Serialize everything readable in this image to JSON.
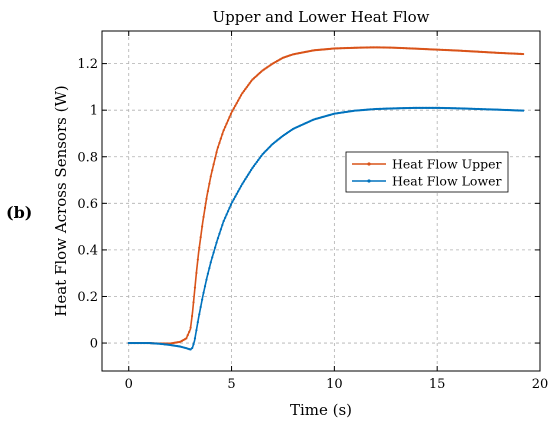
{
  "panel_label": "(b)",
  "chart_data": {
    "type": "line",
    "title": "Upper and Lower Heat Flow",
    "xlabel": "Time (s)",
    "ylabel": "Heat Flow Across Sensors (W)",
    "xlim": [
      -1.3,
      20
    ],
    "ylim": [
      -0.12,
      1.34
    ],
    "xticks": [
      0,
      5,
      10,
      15,
      20
    ],
    "xtick_labels": [
      "0",
      "5",
      "10",
      "15",
      "20"
    ],
    "yticks": [
      0,
      0.2,
      0.4,
      0.6,
      0.8,
      1.0,
      1.2
    ],
    "ytick_labels": [
      "0",
      "0.2",
      "0.4",
      "0.6",
      "0.8",
      "1",
      "1.2"
    ],
    "grid": true,
    "legend_position": "right",
    "series": [
      {
        "name": "Heat Flow Upper",
        "color": "#D95319",
        "x": [
          0,
          0.5,
          1,
          1.5,
          2,
          2.5,
          2.8,
          3.0,
          3.1,
          3.2,
          3.3,
          3.4,
          3.6,
          3.8,
          4.0,
          4.3,
          4.6,
          5.0,
          5.5,
          6.0,
          6.5,
          7.0,
          7.5,
          8.0,
          9.0,
          10.0,
          11.0,
          12.0,
          13.0,
          14.0,
          15.0,
          16.0,
          17.0,
          18.0,
          19.2
        ],
        "y": [
          0,
          0,
          0,
          -0.002,
          -0.002,
          0.005,
          0.02,
          0.06,
          0.13,
          0.22,
          0.31,
          0.39,
          0.52,
          0.63,
          0.72,
          0.83,
          0.91,
          0.99,
          1.07,
          1.13,
          1.17,
          1.2,
          1.225,
          1.24,
          1.257,
          1.265,
          1.268,
          1.27,
          1.268,
          1.264,
          1.26,
          1.256,
          1.251,
          1.246,
          1.241
        ]
      },
      {
        "name": "Heat Flow Lower",
        "color": "#0072BD",
        "x": [
          0,
          0.5,
          1,
          1.5,
          2,
          2.5,
          2.8,
          3.0,
          3.1,
          3.2,
          3.3,
          3.4,
          3.6,
          3.8,
          4.0,
          4.3,
          4.6,
          5.0,
          5.5,
          6.0,
          6.5,
          7.0,
          7.5,
          8.0,
          9.0,
          10.0,
          11.0,
          12.0,
          13.0,
          14.0,
          15.0,
          16.0,
          17.0,
          18.0,
          19.2
        ],
        "y": [
          0,
          0,
          0,
          -0.003,
          -0.008,
          -0.015,
          -0.022,
          -0.028,
          -0.02,
          0.01,
          0.06,
          0.11,
          0.2,
          0.28,
          0.35,
          0.44,
          0.52,
          0.6,
          0.68,
          0.75,
          0.81,
          0.855,
          0.89,
          0.92,
          0.96,
          0.985,
          0.998,
          1.005,
          1.008,
          1.01,
          1.01,
          1.008,
          1.005,
          1.002,
          0.998
        ]
      }
    ]
  }
}
